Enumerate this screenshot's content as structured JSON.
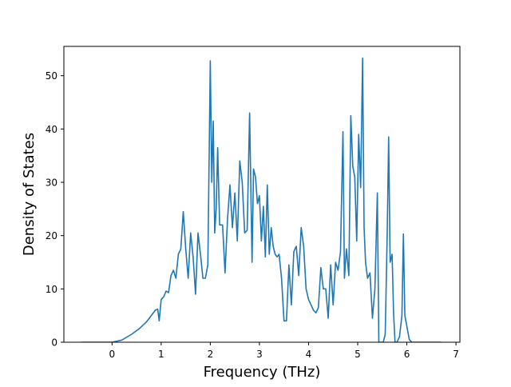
{
  "chart_data": {
    "type": "line",
    "title": "",
    "xlabel": "Frequency (THz)",
    "ylabel": "Density of States",
    "xlim": [
      -0.98,
      7.08
    ],
    "ylim": [
      0,
      55.5
    ],
    "xticks": [
      0,
      1,
      2,
      3,
      4,
      5,
      6,
      7
    ],
    "yticks": [
      0,
      10,
      20,
      30,
      40,
      50
    ],
    "grid": false,
    "legend": "none",
    "series": [
      {
        "color": "#1f77b4",
        "x": [
          -0.63,
          -0.3,
          0.0,
          0.2,
          0.4,
          0.55,
          0.7,
          0.8,
          0.88,
          0.93,
          0.96,
          1.0,
          1.05,
          1.1,
          1.15,
          1.2,
          1.25,
          1.3,
          1.35,
          1.4,
          1.45,
          1.5,
          1.55,
          1.6,
          1.65,
          1.7,
          1.75,
          1.8,
          1.85,
          1.9,
          1.95,
          2.0,
          2.03,
          2.06,
          2.09,
          2.12,
          2.15,
          2.19,
          2.22,
          2.25,
          2.3,
          2.35,
          2.4,
          2.45,
          2.5,
          2.55,
          2.6,
          2.65,
          2.7,
          2.75,
          2.8,
          2.85,
          2.88,
          2.92,
          2.96,
          3.0,
          3.04,
          3.08,
          3.12,
          3.16,
          3.2,
          3.24,
          3.28,
          3.32,
          3.36,
          3.4,
          3.45,
          3.5,
          3.55,
          3.6,
          3.65,
          3.7,
          3.75,
          3.8,
          3.85,
          3.9,
          3.95,
          4.0,
          4.05,
          4.1,
          4.15,
          4.2,
          4.25,
          4.3,
          4.35,
          4.4,
          4.45,
          4.5,
          4.55,
          4.6,
          4.65,
          4.7,
          4.73,
          4.77,
          4.82,
          4.86,
          4.9,
          4.94,
          4.98,
          5.02,
          5.06,
          5.1,
          5.13,
          5.16,
          5.2,
          5.25,
          5.3,
          5.35,
          5.4,
          5.43,
          5.47,
          5.52,
          5.56,
          5.6,
          5.63,
          5.66,
          5.7,
          5.73,
          5.76,
          5.8,
          5.85,
          5.9,
          5.93,
          5.96,
          6.0,
          6.05,
          6.1,
          6.15,
          6.2,
          6.7
        ],
        "y": [
          0,
          0,
          0,
          0.4,
          1.5,
          2.5,
          3.8,
          5.0,
          6.0,
          6.2,
          4.0,
          8.0,
          8.5,
          9.6,
          9.3,
          12.5,
          13.5,
          12.0,
          16.5,
          17.5,
          24.5,
          17.5,
          12.0,
          20.5,
          16.0,
          9.0,
          20.5,
          16.5,
          12.0,
          12.0,
          14.5,
          52.8,
          30.0,
          41.5,
          20.5,
          25.0,
          36.5,
          22.0,
          22.0,
          22.0,
          13.0,
          23.0,
          29.5,
          21.5,
          28.0,
          19.0,
          34.0,
          30.0,
          20.5,
          21.0,
          43.0,
          15.0,
          32.5,
          31.0,
          26.0,
          27.5,
          19.0,
          25.5,
          16.0,
          29.5,
          16.5,
          21.5,
          18.0,
          16.5,
          16.0,
          16.5,
          12.0,
          4.0,
          4.0,
          14.5,
          7.0,
          17.0,
          18.0,
          12.5,
          21.5,
          18.0,
          10.0,
          8.0,
          7.0,
          6.0,
          5.5,
          6.5,
          14.0,
          10.0,
          10.0,
          4.5,
          14.5,
          7.0,
          15.0,
          13.5,
          17.0,
          39.5,
          12.0,
          17.5,
          12.5,
          42.5,
          33.0,
          31.0,
          19.0,
          39.0,
          29.0,
          53.3,
          21.5,
          15.0,
          12.0,
          13.0,
          4.5,
          10.0,
          28.0,
          0,
          0,
          0,
          1.5,
          20.0,
          38.5,
          15.0,
          16.5,
          5.5,
          0,
          0,
          1.0,
          5.0,
          20.3,
          5.0,
          3.0,
          0.5,
          0,
          0,
          0,
          0
        ]
      }
    ]
  }
}
